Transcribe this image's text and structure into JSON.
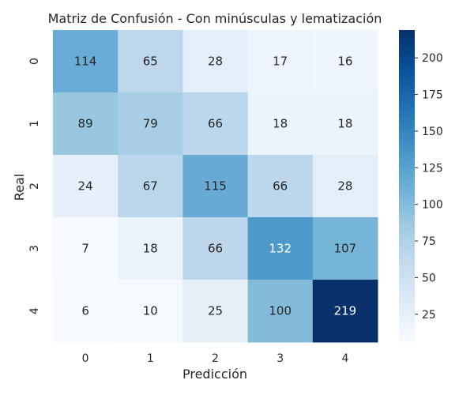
{
  "chart_data": {
    "type": "heatmap",
    "title": "Matriz de Confusión - Con minúsculas y lematización",
    "xlabel": "Predicción",
    "ylabel": "Real",
    "x_categories": [
      "0",
      "1",
      "2",
      "3",
      "4"
    ],
    "y_categories": [
      "0",
      "1",
      "2",
      "3",
      "4"
    ],
    "values": [
      [
        114,
        65,
        28,
        17,
        16
      ],
      [
        89,
        79,
        66,
        18,
        18
      ],
      [
        24,
        67,
        115,
        66,
        28
      ],
      [
        7,
        18,
        66,
        132,
        107
      ],
      [
        6,
        10,
        25,
        100,
        219
      ]
    ],
    "colormap": "Blues",
    "color_range": [
      6,
      219
    ],
    "colorbar_ticks": [
      25,
      50,
      75,
      100,
      125,
      150,
      175,
      200
    ]
  }
}
